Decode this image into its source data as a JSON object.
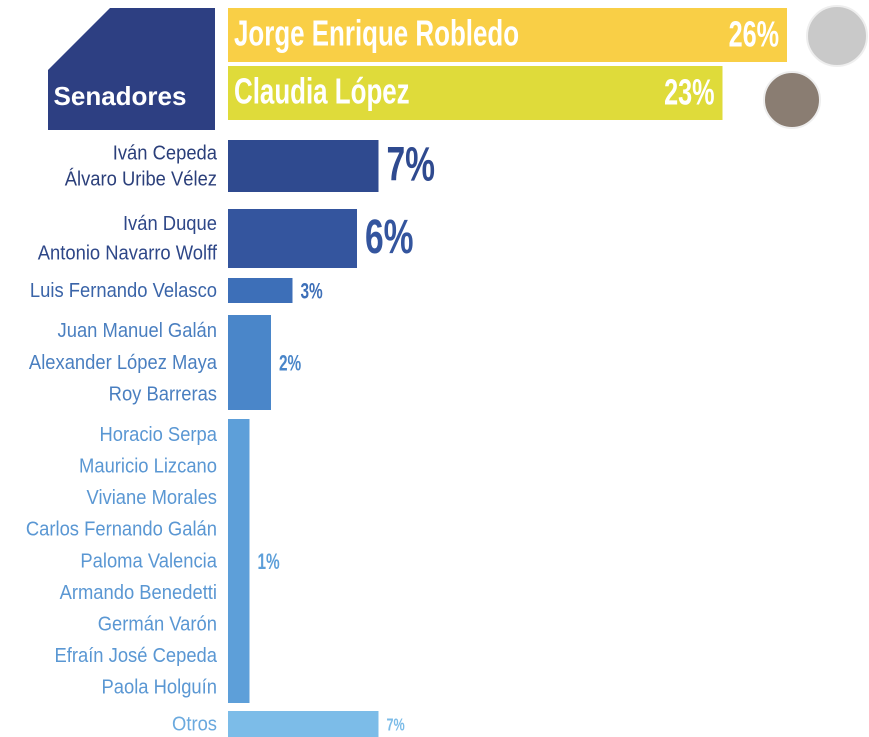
{
  "chart_data": {
    "type": "bar",
    "title": "Senadores",
    "categories": [
      [
        "Jorge Enrique Robledo"
      ],
      [
        "Claudia López"
      ],
      [
        "Iván Cepeda",
        "Álvaro Uribe Vélez"
      ],
      [
        "Iván Duque",
        "Antonio Navarro Wolff"
      ],
      [
        "Luis Fernando Velasco"
      ],
      [
        "Juan Manuel Galán",
        "Alexander López Maya",
        "Roy Barreras"
      ],
      [
        "Horacio Serpa",
        "Mauricio Lizcano",
        "Viviane Morales",
        "Carlos Fernando Galán",
        "Paloma Valencia",
        "Armando Benedetti",
        "Germán Varón",
        "Efraín José Cepeda",
        "Paola Holguín"
      ],
      [
        "Otros"
      ]
    ],
    "values": [
      26,
      23,
      7,
      6,
      3,
      2,
      1,
      7
    ],
    "value_labels": [
      "26%",
      "23%",
      "7%",
      "6%",
      "3%",
      "2%",
      "1%",
      "7%"
    ],
    "colors": [
      "#f9cf46",
      "#dfdb3a",
      "#2f4a8f",
      "#34559e",
      "#3d6fb8",
      "#4a86c9",
      "#5d9fd9",
      "#7cbce8"
    ]
  }
}
